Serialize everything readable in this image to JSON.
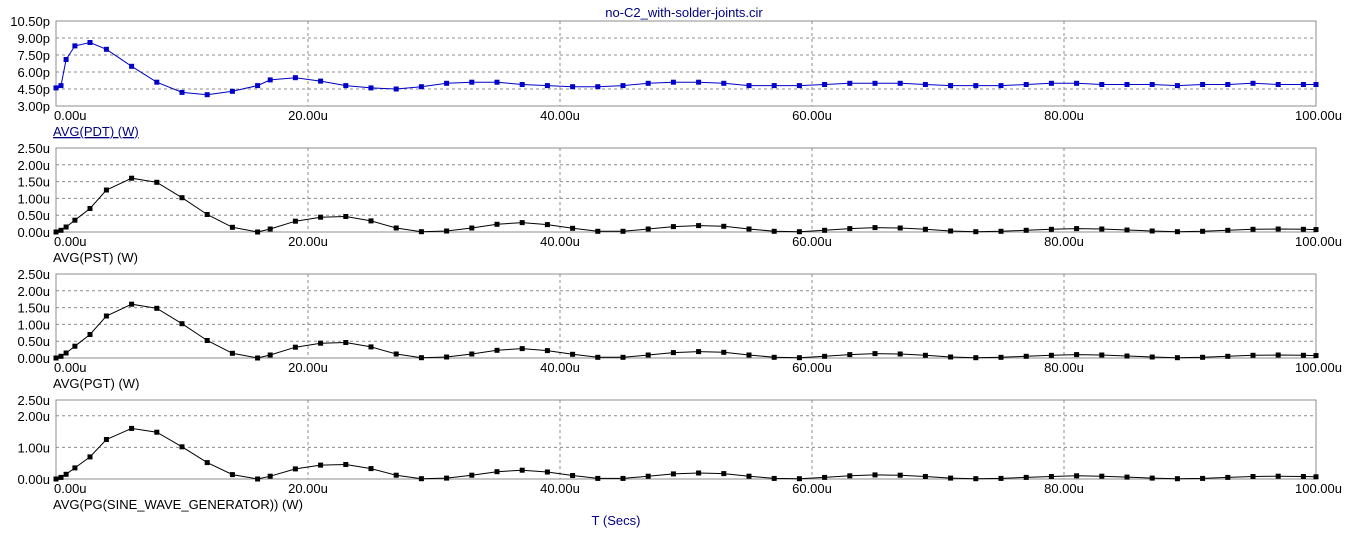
{
  "title": "no-C2_with-solder-joints.cir",
  "x_axis_title": "T (Secs)",
  "colors": {
    "blue_trace": "#0000c8",
    "black_trace": "#000000",
    "grid": "#8c8c8c",
    "title": "#000080"
  },
  "chart_data": [
    {
      "type": "line",
      "ylabel": "AVG(PDT) (W)",
      "y_ticks": [
        "3.00p",
        "4.50p",
        "6.00p",
        "7.50p",
        "9.00p",
        "10.50p"
      ],
      "y_tick_values": [
        3.0,
        4.5,
        6.0,
        7.5,
        9.0,
        10.5
      ],
      "ylim": [
        3.0,
        10.5
      ],
      "x_ticks": [
        "0.00u",
        "20.00u",
        "40.00u",
        "60.00u",
        "80.00u",
        "100.00u"
      ],
      "xlim": [
        0,
        100
      ],
      "grid": true,
      "series": [
        {
          "color": "#0000c8",
          "x": [
            0,
            0.4,
            0.8,
            1.5,
            2.7,
            4,
            6,
            8,
            10,
            12,
            14,
            16,
            17,
            19,
            21,
            23,
            25,
            27,
            29,
            31,
            33,
            35,
            37,
            39,
            41,
            43,
            45,
            47,
            49,
            51,
            53,
            55,
            57,
            59,
            61,
            63,
            65,
            67,
            69,
            71,
            73,
            75,
            77,
            79,
            81,
            83,
            85,
            87,
            89,
            91,
            93,
            95,
            97,
            99,
            100
          ],
          "values": [
            4.6,
            4.8,
            7.1,
            8.3,
            8.6,
            8.0,
            6.5,
            5.1,
            4.2,
            4.0,
            4.3,
            4.8,
            5.3,
            5.5,
            5.2,
            4.8,
            4.6,
            4.5,
            4.7,
            5.0,
            5.1,
            5.1,
            4.9,
            4.8,
            4.7,
            4.7,
            4.8,
            5.0,
            5.1,
            5.1,
            5.0,
            4.8,
            4.8,
            4.8,
            4.9,
            5.0,
            5.0,
            5.0,
            4.9,
            4.8,
            4.8,
            4.8,
            4.9,
            5.0,
            5.0,
            4.9,
            4.9,
            4.9,
            4.8,
            4.9,
            4.9,
            5.0,
            4.9,
            4.9,
            4.9
          ]
        }
      ]
    },
    {
      "type": "line",
      "ylabel": "AVG(PST) (W)",
      "y_ticks": [
        "0.00u",
        "0.50u",
        "1.00u",
        "1.50u",
        "2.00u",
        "2.50u"
      ],
      "y_tick_values": [
        0,
        0.5,
        1.0,
        1.5,
        2.0,
        2.5
      ],
      "ylim": [
        0,
        2.5
      ],
      "x_ticks": [
        "0.00u",
        "20.00u",
        "40.00u",
        "60.00u",
        "80.00u",
        "100.00u"
      ],
      "xlim": [
        0,
        100
      ],
      "grid": true,
      "series": [
        {
          "color": "#000000",
          "x": [
            0,
            0.4,
            0.8,
            1.5,
            2.7,
            4,
            6,
            8,
            10,
            12,
            14,
            16,
            17,
            19,
            21,
            23,
            25,
            27,
            29,
            31,
            33,
            35,
            37,
            39,
            41,
            43,
            45,
            47,
            49,
            51,
            53,
            55,
            57,
            59,
            61,
            63,
            65,
            67,
            69,
            71,
            73,
            75,
            77,
            79,
            81,
            83,
            85,
            87,
            89,
            91,
            93,
            95,
            97,
            99,
            100
          ],
          "values": [
            0.0,
            0.05,
            0.15,
            0.35,
            0.7,
            1.25,
            1.6,
            1.48,
            1.02,
            0.52,
            0.14,
            0.0,
            0.09,
            0.32,
            0.44,
            0.46,
            0.33,
            0.12,
            0.01,
            0.03,
            0.12,
            0.23,
            0.28,
            0.22,
            0.11,
            0.02,
            0.02,
            0.09,
            0.16,
            0.19,
            0.17,
            0.09,
            0.02,
            0.01,
            0.05,
            0.1,
            0.13,
            0.12,
            0.08,
            0.03,
            0.01,
            0.02,
            0.05,
            0.08,
            0.1,
            0.09,
            0.06,
            0.03,
            0.01,
            0.02,
            0.05,
            0.08,
            0.09,
            0.08,
            0.07
          ]
        }
      ]
    },
    {
      "type": "line",
      "ylabel": "AVG(PGT) (W)",
      "y_ticks": [
        "0.00u",
        "0.50u",
        "1.00u",
        "1.50u",
        "2.00u",
        "2.50u"
      ],
      "y_tick_values": [
        0,
        0.5,
        1.0,
        1.5,
        2.0,
        2.5
      ],
      "ylim": [
        0,
        2.5
      ],
      "x_ticks": [
        "0.00u",
        "20.00u",
        "40.00u",
        "60.00u",
        "80.00u",
        "100.00u"
      ],
      "xlim": [
        0,
        100
      ],
      "grid": true,
      "series": [
        {
          "color": "#000000",
          "x": [
            0,
            0.4,
            0.8,
            1.5,
            2.7,
            4,
            6,
            8,
            10,
            12,
            14,
            16,
            17,
            19,
            21,
            23,
            25,
            27,
            29,
            31,
            33,
            35,
            37,
            39,
            41,
            43,
            45,
            47,
            49,
            51,
            53,
            55,
            57,
            59,
            61,
            63,
            65,
            67,
            69,
            71,
            73,
            75,
            77,
            79,
            81,
            83,
            85,
            87,
            89,
            91,
            93,
            95,
            97,
            99,
            100
          ],
          "values": [
            0.0,
            0.05,
            0.15,
            0.35,
            0.7,
            1.25,
            1.6,
            1.48,
            1.02,
            0.52,
            0.14,
            0.0,
            0.09,
            0.32,
            0.44,
            0.46,
            0.33,
            0.12,
            0.01,
            0.03,
            0.12,
            0.23,
            0.28,
            0.22,
            0.11,
            0.02,
            0.02,
            0.09,
            0.16,
            0.19,
            0.17,
            0.09,
            0.02,
            0.01,
            0.05,
            0.1,
            0.13,
            0.12,
            0.08,
            0.03,
            0.01,
            0.02,
            0.05,
            0.08,
            0.1,
            0.09,
            0.06,
            0.03,
            0.01,
            0.02,
            0.05,
            0.08,
            0.09,
            0.08,
            0.07
          ]
        }
      ]
    },
    {
      "type": "line",
      "ylabel": "AVG(PG(SINE_WAVE_GENERATOR)) (W)",
      "y_ticks": [
        "0.00u",
        "1.00u",
        "2.00u",
        "2.50u"
      ],
      "y_tick_values": [
        0,
        1.0,
        2.0,
        2.5
      ],
      "ylim": [
        0,
        2.5
      ],
      "x_ticks": [
        "0.00u",
        "20.00u",
        "40.00u",
        "60.00u",
        "80.00u",
        "100.00u"
      ],
      "xlim": [
        0,
        100
      ],
      "grid": true,
      "series": [
        {
          "color": "#000000",
          "x": [
            0,
            0.4,
            0.8,
            1.5,
            2.7,
            4,
            6,
            8,
            10,
            12,
            14,
            16,
            17,
            19,
            21,
            23,
            25,
            27,
            29,
            31,
            33,
            35,
            37,
            39,
            41,
            43,
            45,
            47,
            49,
            51,
            53,
            55,
            57,
            59,
            61,
            63,
            65,
            67,
            69,
            71,
            73,
            75,
            77,
            79,
            81,
            83,
            85,
            87,
            89,
            91,
            93,
            95,
            97,
            99,
            100
          ],
          "values": [
            0.0,
            0.05,
            0.15,
            0.35,
            0.7,
            1.25,
            1.6,
            1.48,
            1.02,
            0.52,
            0.14,
            0.0,
            0.09,
            0.32,
            0.44,
            0.46,
            0.33,
            0.12,
            0.01,
            0.03,
            0.12,
            0.23,
            0.28,
            0.22,
            0.11,
            0.02,
            0.02,
            0.09,
            0.16,
            0.19,
            0.17,
            0.09,
            0.02,
            0.01,
            0.05,
            0.1,
            0.13,
            0.12,
            0.08,
            0.03,
            0.01,
            0.02,
            0.05,
            0.08,
            0.1,
            0.09,
            0.06,
            0.03,
            0.01,
            0.02,
            0.05,
            0.08,
            0.09,
            0.08,
            0.07
          ]
        }
      ]
    }
  ]
}
